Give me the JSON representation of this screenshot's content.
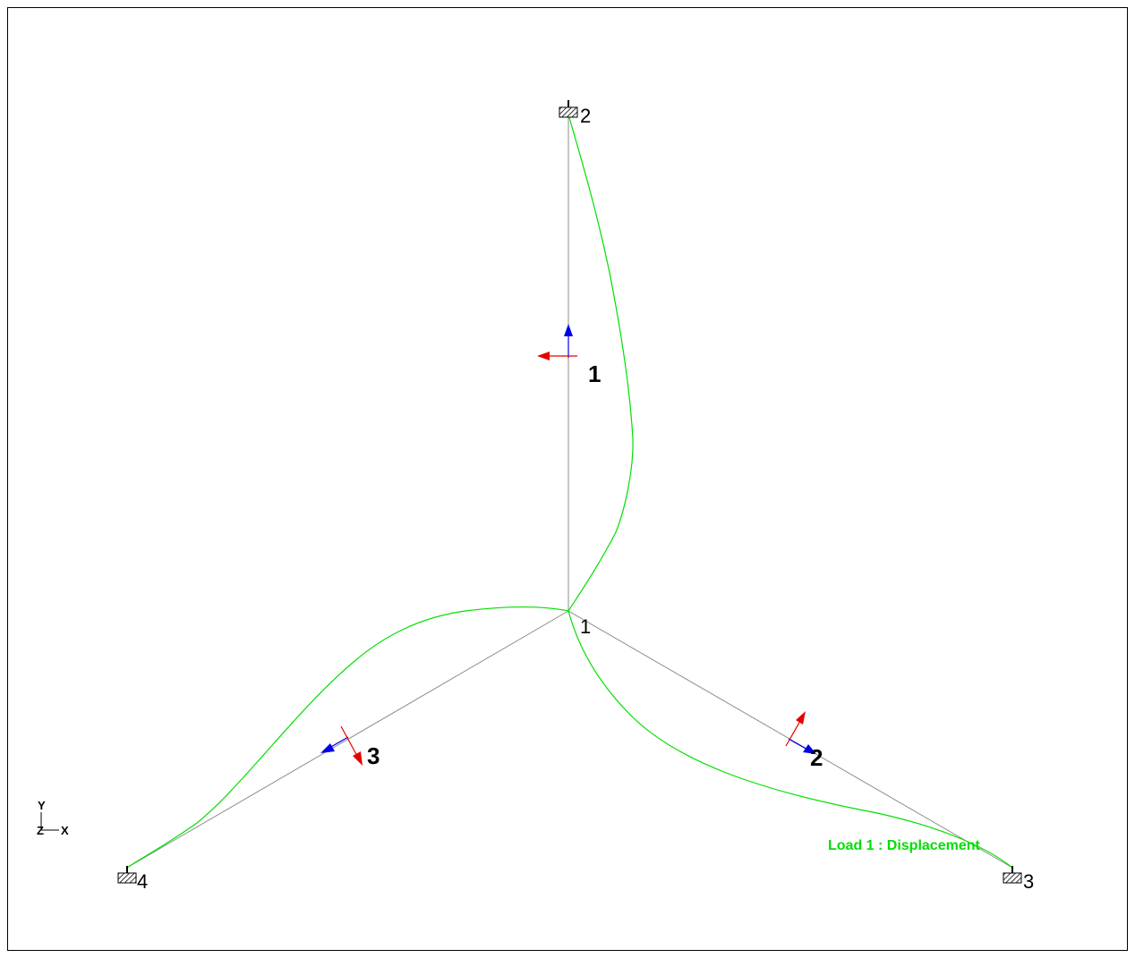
{
  "nodes": [
    {
      "id": "1",
      "label": "1"
    },
    {
      "id": "2",
      "label": "2"
    },
    {
      "id": "3",
      "label": "3"
    },
    {
      "id": "4",
      "label": "4"
    }
  ],
  "members": [
    {
      "id": "1",
      "label": "1"
    },
    {
      "id": "2",
      "label": "2"
    },
    {
      "id": "3",
      "label": "3"
    }
  ],
  "axes": {
    "y": "Y",
    "z": "Z",
    "x": "X"
  },
  "load_caption": "Load 1 : Displacement",
  "colors": {
    "member": "#8c8c8c",
    "deflected": "#00e000",
    "local_x_arrow": "#0000e6",
    "local_y_arrow": "#e60000",
    "border": "#000000",
    "load_caption": "#00e000"
  }
}
